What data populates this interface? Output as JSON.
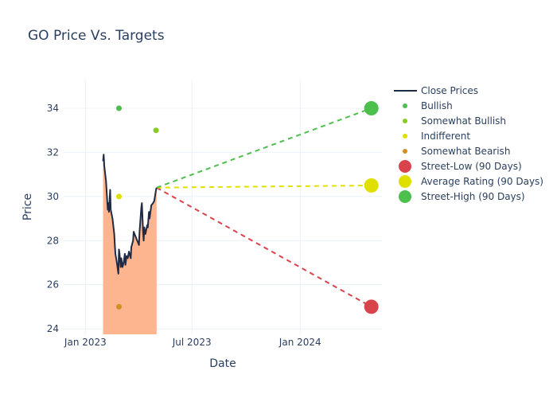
{
  "chart_data": {
    "type": "line",
    "title": "GO Price Vs. Targets",
    "xlabel": "Date",
    "ylabel": "Price",
    "ylim": [
      23.75,
      35.3
    ],
    "xlim": [
      "2022-11-25",
      "2024-05-19"
    ],
    "x_ticks": [
      {
        "date": "2023-01-01",
        "label": "Jan 2023"
      },
      {
        "date": "2023-07-01",
        "label": "Jul 2023"
      },
      {
        "date": "2024-01-01",
        "label": "Jan 2024"
      }
    ],
    "y_ticks": [
      24,
      26,
      28,
      30,
      32,
      34
    ],
    "grid": true,
    "legend_position": "top-right",
    "colors": {
      "close_line": "#1f2a44",
      "close_fill": "#fcb58f",
      "bullish": "#4cbf4c",
      "somewhat_bullish": "#88cc22",
      "indifferent": "#e0e000",
      "somewhat_bearish": "#d4901e",
      "street_low": "#d9434c",
      "average": "#e0e000",
      "street_high": "#4cbf4c"
    },
    "series": [
      {
        "name": "Close Prices",
        "kind": "line",
        "points": [
          [
            "2023-01-31",
            31.6
          ],
          [
            "2023-02-01",
            31.9
          ],
          [
            "2023-02-02",
            31.4
          ],
          [
            "2023-02-05",
            30.7
          ],
          [
            "2023-02-08",
            29.4
          ],
          [
            "2023-02-09",
            29.7
          ],
          [
            "2023-02-10",
            29.3
          ],
          [
            "2023-02-12",
            30.3
          ],
          [
            "2023-02-13",
            29.4
          ],
          [
            "2023-02-16",
            29.0
          ],
          [
            "2023-02-19",
            28.3
          ],
          [
            "2023-02-20",
            27.8
          ],
          [
            "2023-02-21",
            27.4
          ],
          [
            "2023-02-24",
            26.9
          ],
          [
            "2023-02-26",
            26.5
          ],
          [
            "2023-02-27",
            27.6
          ],
          [
            "2023-02-28",
            27.4
          ],
          [
            "2023-03-02",
            26.8
          ],
          [
            "2023-03-03",
            27.2
          ],
          [
            "2023-03-05",
            26.8
          ],
          [
            "2023-03-07",
            27.0
          ],
          [
            "2023-03-09",
            27.4
          ],
          [
            "2023-03-10",
            26.9
          ],
          [
            "2023-03-12",
            27.3
          ],
          [
            "2023-03-14",
            27.2
          ],
          [
            "2023-03-16",
            27.5
          ],
          [
            "2023-03-19",
            27.2
          ],
          [
            "2023-03-20",
            27.7
          ],
          [
            "2023-03-23",
            28.0
          ],
          [
            "2023-03-24",
            28.4
          ],
          [
            "2023-03-27",
            28.2
          ],
          [
            "2023-03-30",
            28.0
          ],
          [
            "2023-04-02",
            27.8
          ],
          [
            "2023-04-03",
            28.4
          ],
          [
            "2023-04-06",
            29.5
          ],
          [
            "2023-04-07",
            29.7
          ],
          [
            "2023-04-09",
            28.4
          ],
          [
            "2023-04-10",
            28.0
          ],
          [
            "2023-04-11",
            28.6
          ],
          [
            "2023-04-13",
            28.3
          ],
          [
            "2023-04-16",
            28.7
          ],
          [
            "2023-04-17",
            28.6
          ],
          [
            "2023-04-19",
            29.3
          ],
          [
            "2023-04-20",
            29.0
          ],
          [
            "2023-04-23",
            29.6
          ],
          [
            "2023-04-26",
            29.7
          ],
          [
            "2023-04-28",
            29.8
          ],
          [
            "2023-05-01",
            30.3
          ],
          [
            "2023-05-02",
            30.4
          ]
        ]
      },
      {
        "name": "Bullish",
        "kind": "dot",
        "points": [
          [
            "2023-02-27",
            34
          ]
        ]
      },
      {
        "name": "Somewhat Bullish",
        "kind": "dot",
        "points": [
          [
            "2023-05-01",
            33
          ]
        ]
      },
      {
        "name": "Indifferent",
        "kind": "dot",
        "points": [
          [
            "2023-02-27",
            30
          ]
        ]
      },
      {
        "name": "Somewhat Bearish",
        "kind": "dot",
        "points": [
          [
            "2023-02-27",
            25
          ]
        ]
      },
      {
        "name": "Street-Low (90 Days)",
        "kind": "target",
        "points": [
          [
            "2023-05-02",
            30.4
          ],
          [
            "2024-05-01",
            25
          ]
        ]
      },
      {
        "name": "Average Rating (90 Days)",
        "kind": "target",
        "points": [
          [
            "2023-05-02",
            30.4
          ],
          [
            "2024-05-01",
            30.5
          ]
        ]
      },
      {
        "name": "Street-High (90 Days)",
        "kind": "target",
        "points": [
          [
            "2023-05-02",
            30.4
          ],
          [
            "2024-05-01",
            34
          ]
        ]
      }
    ],
    "legend": [
      {
        "label": "Close Prices",
        "symbol": "line",
        "color_key": "close_line"
      },
      {
        "label": "Bullish",
        "symbol": "small-dot",
        "color_key": "bullish"
      },
      {
        "label": "Somewhat Bullish",
        "symbol": "small-dot",
        "color_key": "somewhat_bullish"
      },
      {
        "label": "Indifferent",
        "symbol": "small-dot",
        "color_key": "indifferent"
      },
      {
        "label": "Somewhat Bearish",
        "symbol": "small-dot",
        "color_key": "somewhat_bearish"
      },
      {
        "label": "Street-Low (90 Days)",
        "symbol": "big-dot",
        "color_key": "street_low"
      },
      {
        "label": "Average Rating (90 Days)",
        "symbol": "big-dot",
        "color_key": "average"
      },
      {
        "label": "Street-High (90 Days)",
        "symbol": "big-dot",
        "color_key": "street_high"
      }
    ]
  }
}
